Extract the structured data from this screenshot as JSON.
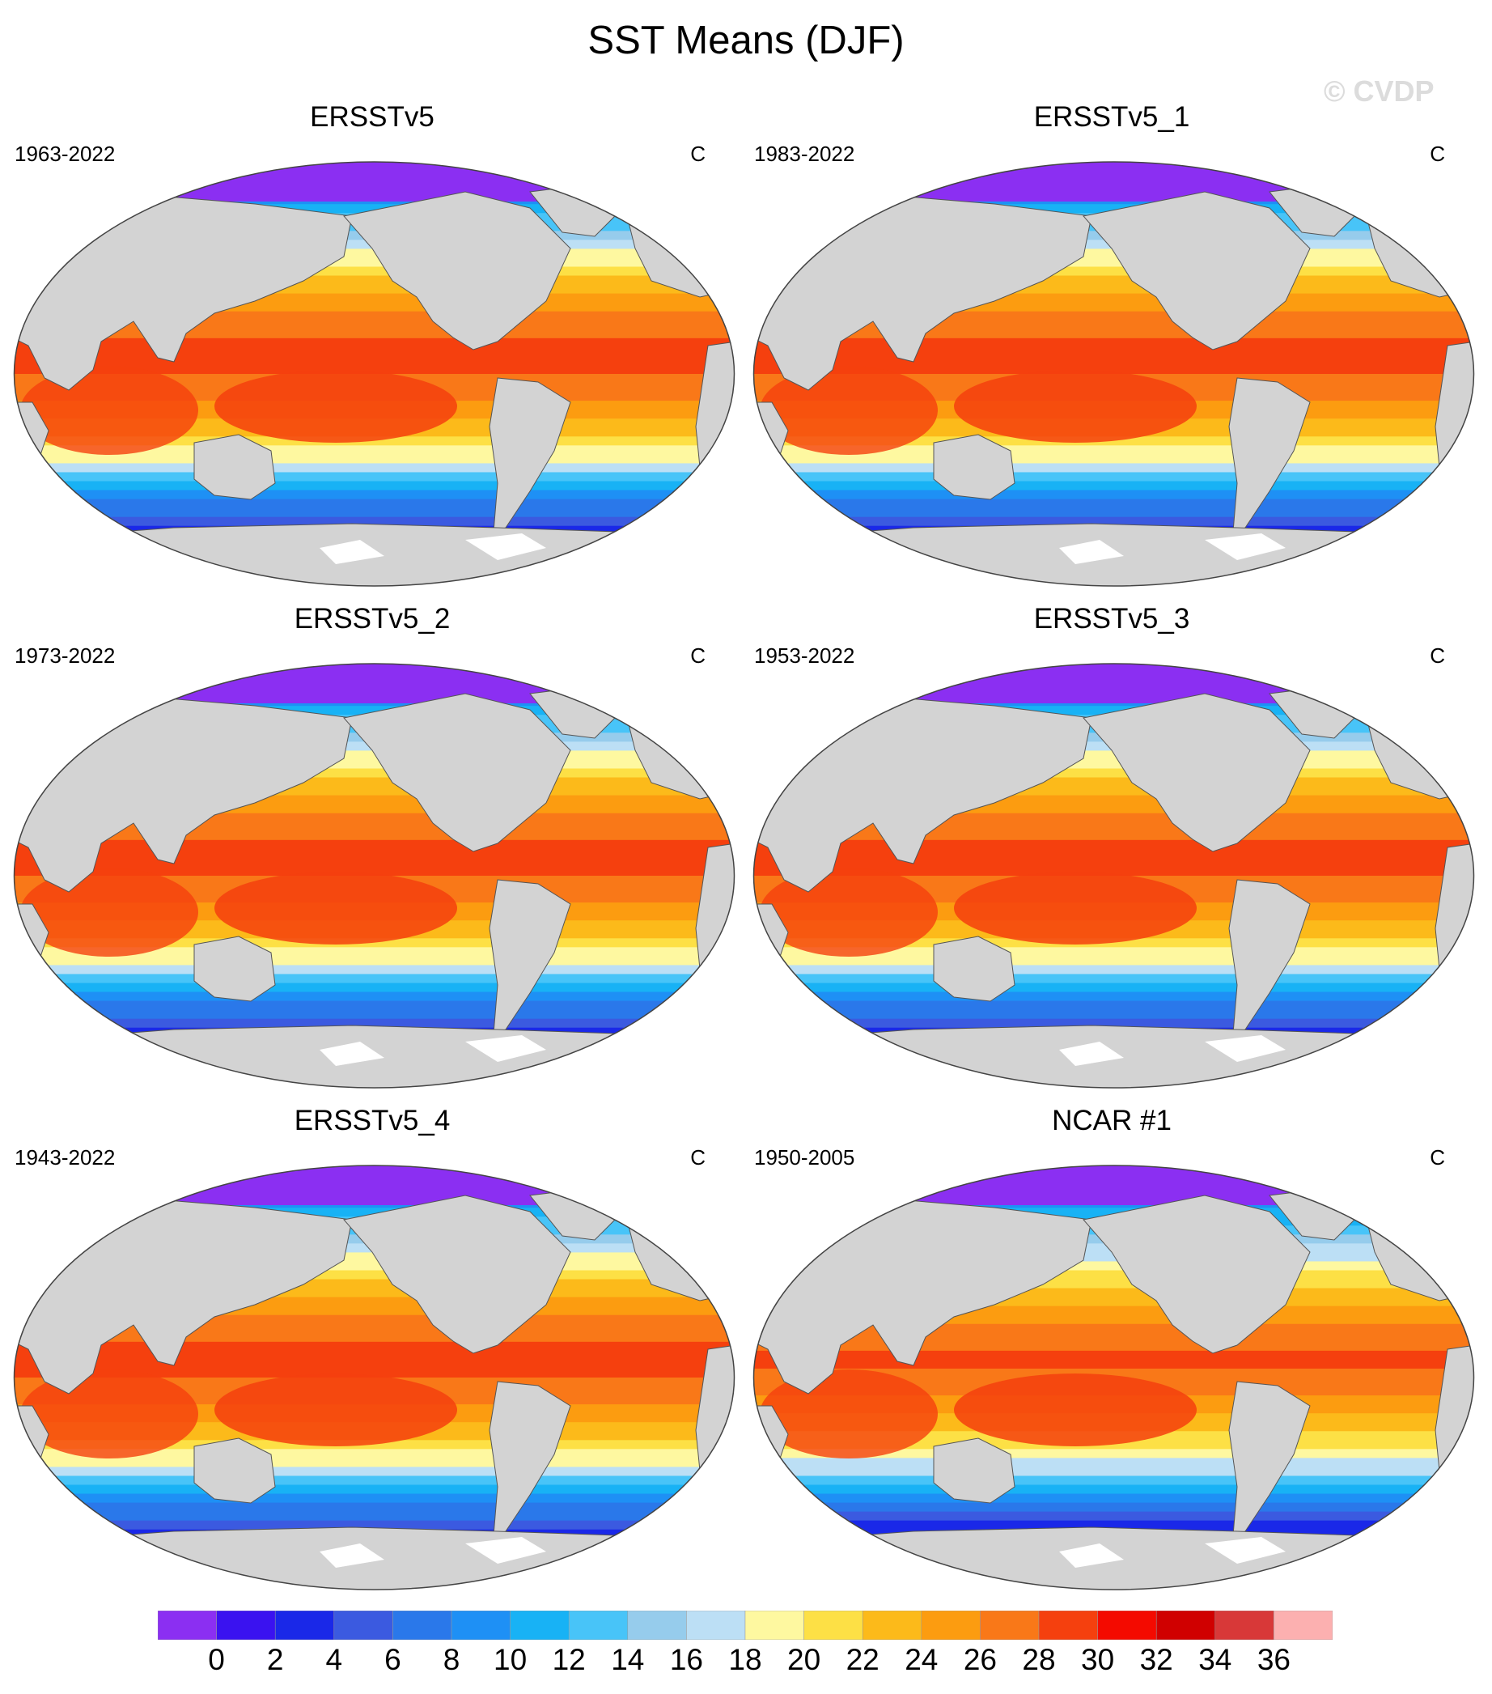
{
  "title": "SST Means (DJF)",
  "watermark": "© CVDP",
  "panels": [
    {
      "name": "ERSSTv5",
      "period": "1963-2022",
      "units": "C"
    },
    {
      "name": "ERSSTv5_1",
      "period": "1983-2022",
      "units": "C"
    },
    {
      "name": "ERSSTv5_2",
      "period": "1973-2022",
      "units": "C"
    },
    {
      "name": "ERSSTv5_3",
      "period": "1953-2022",
      "units": "C"
    },
    {
      "name": "ERSSTv5_4",
      "period": "1943-2022",
      "units": "C"
    },
    {
      "name": "NCAR #1",
      "period": "1950-2005",
      "units": "C"
    }
  ],
  "colorbar": {
    "labels": [
      "0",
      "2",
      "4",
      "6",
      "8",
      "10",
      "12",
      "14",
      "16",
      "18",
      "20",
      "22",
      "24",
      "26",
      "28",
      "30",
      "32",
      "34",
      "36"
    ],
    "colors": [
      "#8b2ff2",
      "#3a12f0",
      "#1a28e8",
      "#3b5ae0",
      "#2a78ea",
      "#1e90f5",
      "#18b2f5",
      "#48c4f8",
      "#96ccec",
      "#bcdff5",
      "#fef8a0",
      "#fde045",
      "#fcba1a",
      "#fc9c10",
      "#f97818",
      "#f5400e",
      "#f40a00",
      "#d00000",
      "#d83838",
      "#fcb0b0"
    ]
  },
  "map_style": {
    "land": "#d3d3d3",
    "frame": "#444444"
  }
}
